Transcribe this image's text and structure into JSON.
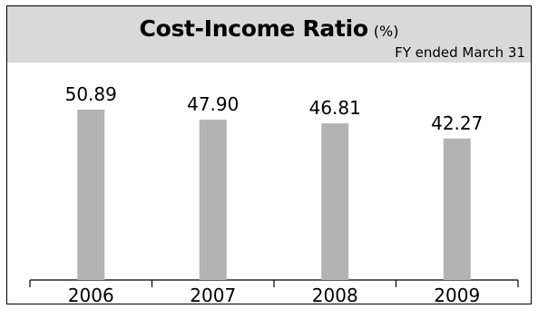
{
  "chart_data": {
    "type": "bar",
    "title": "Cost-Income Ratio",
    "title_unit": "(%)",
    "subtitle": "FY ended March 31",
    "categories": [
      "2006",
      "2007",
      "2008",
      "2009"
    ],
    "values": [
      50.89,
      47.9,
      46.81,
      42.27
    ],
    "data_labels": [
      "50.89",
      "47.90",
      "46.81",
      "42.27"
    ],
    "ylim": [
      0,
      62
    ],
    "grid": false,
    "legend": "none",
    "colors": {
      "bar": "#b3b3b3",
      "header_band": "#d9d9d9",
      "axis": "#000000"
    }
  }
}
